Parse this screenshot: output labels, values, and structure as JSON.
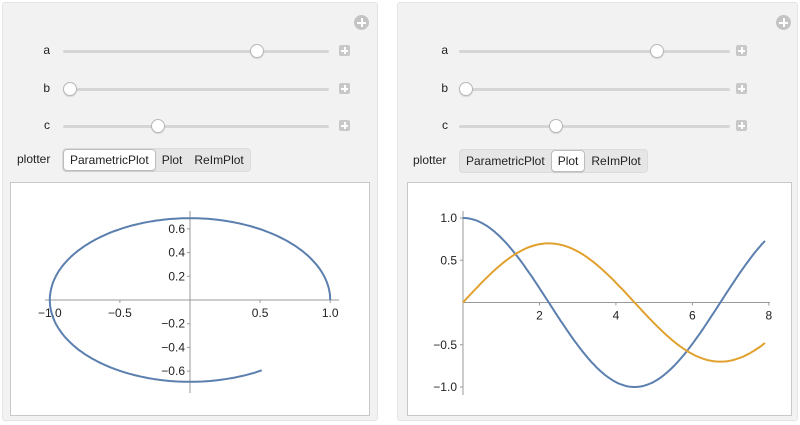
{
  "colors": {
    "blue_curve": "#5b7fae",
    "orange_curve": "#e0a12e",
    "panel_bg": "#f2f2f2"
  },
  "left_panel": {
    "sliders": [
      {
        "label": "a",
        "value_fraction": 0.73
      },
      {
        "label": "b",
        "value_fraction": 0.0
      },
      {
        "label": "c",
        "value_fraction": 0.35
      }
    ],
    "plotter": {
      "label": "plotter",
      "options": [
        "ParametricPlot",
        "Plot",
        "ReImPlot"
      ],
      "selected": "ParametricPlot"
    }
  },
  "right_panel": {
    "sliders": [
      {
        "label": "a",
        "value_fraction": 0.73
      },
      {
        "label": "b",
        "value_fraction": 0.0
      },
      {
        "label": "c",
        "value_fraction": 0.35
      }
    ],
    "plotter": {
      "label": "plotter",
      "options": [
        "ParametricPlot",
        "Plot",
        "ReImPlot"
      ],
      "selected": "Plot"
    }
  },
  "chart_data": [
    {
      "type": "line",
      "plot": "ParametricPlot",
      "x_ticks": [
        "−1.0",
        "−0.5",
        "0.5",
        "1.0"
      ],
      "x_tick_values": [
        -1.0,
        -0.5,
        0.5,
        1.0
      ],
      "y_ticks": [
        "0.6",
        "0.4",
        "0.2",
        "−0.2",
        "−0.4",
        "−0.6"
      ],
      "y_tick_values": [
        0.6,
        0.4,
        0.2,
        -0.2,
        -0.4,
        -0.6
      ],
      "xlim": [
        -1.02,
        1.02
      ],
      "ylim": [
        -0.7,
        0.7
      ],
      "series": [
        {
          "color": "#5b7fae",
          "curve": "x=cos(t), y=0.69*sin(t), t in [0, 5.25]"
        }
      ]
    },
    {
      "type": "line",
      "plot": "Plot",
      "x_ticks": [
        "2",
        "4",
        "6",
        "8"
      ],
      "x_tick_values": [
        2,
        4,
        6,
        8
      ],
      "y_ticks": [
        "1.0",
        "0.5",
        "−0.5",
        "−1.0"
      ],
      "y_tick_values": [
        1.0,
        0.5,
        -0.5,
        -1.0
      ],
      "xlim": [
        0,
        7.9
      ],
      "ylim": [
        -1.0,
        1.0
      ],
      "series": [
        {
          "color": "#5b7fae",
          "curve": "cos(0.7x)"
        },
        {
          "color": "#e0a12e",
          "curve": "0.7*sin(0.7x)"
        }
      ]
    }
  ]
}
